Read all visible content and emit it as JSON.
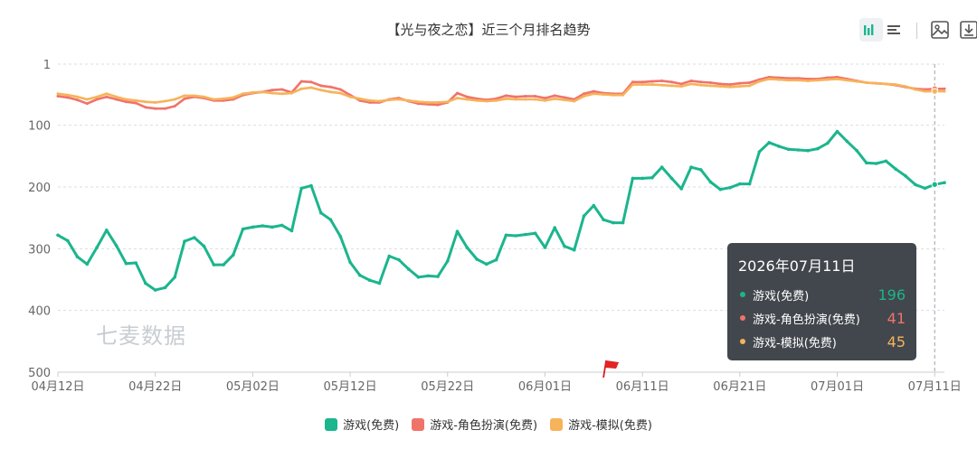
{
  "title": "【光与夜之恋】近三个月排名趋势",
  "watermark": "七麦数据",
  "toolbar": {
    "bar_icon": "bar-chart-icon",
    "list_icon": "list-icon",
    "image_icon": "image-download-icon",
    "download_icon": "download-icon"
  },
  "colors": {
    "green": "#1bb58e",
    "red": "#f0736a",
    "orange": "#f6b35a",
    "grid": "#d9dde2",
    "axis_text": "#666666"
  },
  "tooltip": {
    "date": "2026年07月11日",
    "rows": [
      {
        "name": "游戏(免费)",
        "value": "196",
        "color": "#1bb58e"
      },
      {
        "name": "游戏-角色扮演(免费)",
        "value": "41",
        "color": "#f0736a"
      },
      {
        "name": "游戏-模拟(免费)",
        "value": "45",
        "color": "#f6b35a"
      }
    ]
  },
  "chart_data": {
    "type": "line",
    "title": "【光与夜之恋】近三个月排名趋势",
    "y_inverted": true,
    "ylim": [
      1,
      500
    ],
    "y_ticks": [
      "1",
      "100",
      "200",
      "300",
      "400",
      "500"
    ],
    "y_tick_values": [
      1,
      100,
      200,
      300,
      400,
      500
    ],
    "x_tick_labels": [
      "04月12日",
      "04月22日",
      "05月02日",
      "05月12日",
      "05月22日",
      "06月01日",
      "06月11日",
      "06月21日",
      "07月01日",
      "07月11日"
    ],
    "x_start_label": "04月12日",
    "x_end_label": "07月11日",
    "grid": true,
    "legend_position": "bottom",
    "event_flag_label": "06月07日",
    "series": [
      {
        "name": "游戏(免费)",
        "color": "#1bb58e",
        "values": [
          278,
          287,
          313,
          325,
          298,
          270,
          295,
          324,
          323,
          356,
          367,
          363,
          346,
          288,
          282,
          296,
          326,
          326,
          310,
          268,
          265,
          263,
          265,
          262,
          271,
          202,
          198,
          242,
          253,
          280,
          322,
          343,
          351,
          356,
          312,
          318,
          333,
          346,
          344,
          345,
          320,
          272,
          298,
          317,
          325,
          318,
          278,
          279,
          277,
          275,
          298,
          266,
          296,
          302,
          247,
          230,
          253,
          258,
          258,
          186,
          186,
          185,
          168,
          186,
          203,
          168,
          172,
          192,
          204,
          201,
          195,
          195,
          143,
          128,
          134,
          139,
          140,
          141,
          138,
          129,
          110,
          126,
          141,
          161,
          162,
          158,
          171,
          182,
          196,
          202,
          196,
          193
        ]
      },
      {
        "name": "游戏-角色扮演(免费)",
        "color": "#f0736a",
        "values": [
          53,
          55,
          59,
          65,
          58,
          54,
          58,
          62,
          64,
          71,
          73,
          73,
          69,
          57,
          54,
          56,
          60,
          60,
          58,
          51,
          48,
          46,
          43,
          42,
          47,
          29,
          30,
          36,
          38,
          42,
          51,
          60,
          63,
          63,
          58,
          56,
          61,
          65,
          66,
          67,
          63,
          48,
          54,
          57,
          59,
          57,
          52,
          54,
          53,
          53,
          56,
          52,
          55,
          58,
          49,
          45,
          48,
          49,
          49,
          30,
          30,
          29,
          28,
          30,
          33,
          28,
          30,
          31,
          33,
          34,
          32,
          31,
          26,
          22,
          23,
          24,
          24,
          25,
          25,
          23,
          22,
          25,
          28,
          31,
          32,
          33,
          35,
          38,
          41,
          42,
          41,
          41
        ]
      },
      {
        "name": "游戏-模拟(免费)",
        "color": "#f6b35a",
        "values": [
          49,
          51,
          54,
          58,
          54,
          49,
          54,
          58,
          60,
          62,
          63,
          61,
          58,
          52,
          52,
          54,
          58,
          57,
          55,
          49,
          47,
          46,
          48,
          49,
          48,
          41,
          39,
          43,
          46,
          48,
          54,
          57,
          60,
          61,
          59,
          58,
          60,
          62,
          63,
          63,
          62,
          56,
          58,
          60,
          61,
          60,
          57,
          58,
          58,
          58,
          60,
          57,
          59,
          61,
          53,
          49,
          50,
          51,
          51,
          34,
          34,
          34,
          35,
          36,
          37,
          33,
          35,
          36,
          37,
          38,
          37,
          36,
          29,
          25,
          26,
          27,
          27,
          28,
          27,
          26,
          25,
          27,
          29,
          31,
          32,
          33,
          34,
          37,
          42,
          45,
          45,
          45
        ]
      }
    ]
  }
}
